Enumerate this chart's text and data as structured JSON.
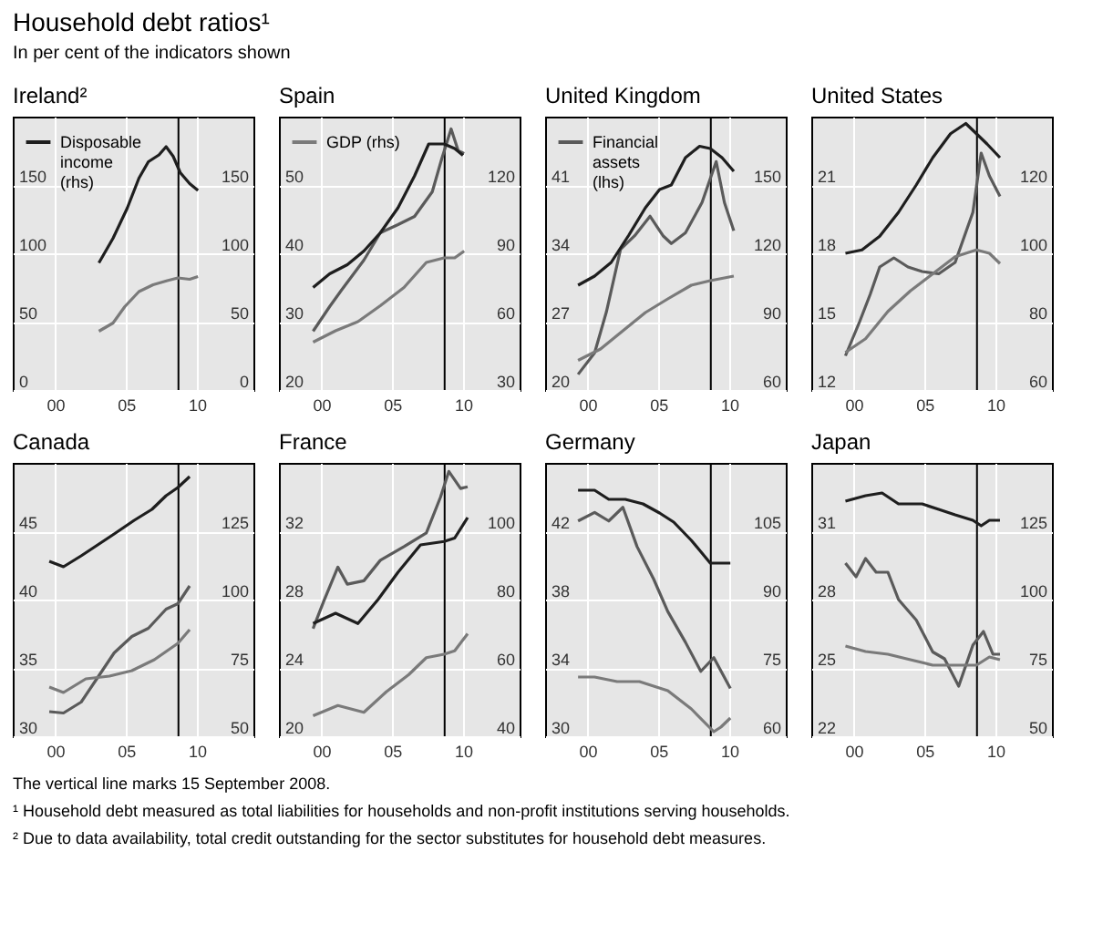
{
  "chart_data": [
    {
      "type": "other",
      "title": "Household debt ratios¹",
      "subtitle": "In per cent of the indicators shown"
    },
    {
      "type": "line",
      "title": "Ireland²",
      "xlim": [
        "1997-01",
        "2014-01"
      ],
      "xticks": [
        {
          "value": "2000",
          "label": "00"
        },
        {
          "value": "2005",
          "label": "05"
        },
        {
          "value": "2010",
          "label": "10"
        }
      ],
      "ylim": [
        0,
        200
      ],
      "yticks": [
        0,
        50,
        100,
        150
      ],
      "y2lim": [
        0,
        200
      ],
      "y2ticks": [
        0,
        50,
        100,
        150
      ],
      "grid": true,
      "legend": "top left",
      "ref_lines": [
        {
          "axis": "x",
          "value": "2008-09-15",
          "color": "#000000"
        }
      ],
      "series": [
        {
          "name": "Disposable income (rhs)",
          "color": "#1e1e1e",
          "axis": "y2",
          "x": [
            "2003-02",
            "2004-02",
            "2005-02",
            "2005-12",
            "2006-08",
            "2007-05",
            "2007-11",
            "2008-05",
            "2008-11",
            "2009-07",
            "2010-02"
          ],
          "values": [
            93,
            111,
            133,
            155,
            167,
            172,
            178,
            171,
            159,
            151,
            146
          ]
        },
        {
          "color": "#7a7a7a",
          "axis": "y2",
          "x": [
            "2003-02",
            "2004-02",
            "2004-12",
            "2005-12",
            "2006-12",
            "2007-12",
            "2008-09",
            "2009-07",
            "2010-02"
          ],
          "values": [
            43,
            49,
            61,
            72,
            77,
            80,
            82,
            81,
            83
          ]
        }
      ]
    },
    {
      "type": "line",
      "title": "Spain",
      "xlim": [
        "1997-01",
        "2014-01"
      ],
      "xticks": [
        {
          "value": "2000",
          "label": "00"
        },
        {
          "value": "2005",
          "label": "05"
        },
        {
          "value": "2010",
          "label": "10"
        }
      ],
      "ylim": [
        20,
        60
      ],
      "yticks": [
        20,
        30,
        40,
        50
      ],
      "y2lim": [
        30,
        150
      ],
      "y2ticks": [
        30,
        60,
        90,
        120
      ],
      "grid": true,
      "legend": "top left",
      "ref_lines": [
        {
          "axis": "x",
          "value": "2008-09-15",
          "color": "#000000"
        }
      ],
      "series": [
        {
          "color": "#1e1e1e",
          "axis": "y2",
          "x": [
            "1999-06",
            "2000-08",
            "2001-11",
            "2003-01",
            "2004-03",
            "2005-06",
            "2006-08",
            "2007-08",
            "2008-09",
            "2009-06",
            "2010-01"
          ],
          "values": [
            75,
            81,
            85,
            91,
            99,
            110,
            124,
            138,
            138,
            136,
            133
          ]
        },
        {
          "color": "#5a5a5a",
          "x": [
            "1999-06",
            "2000-08",
            "2001-06",
            "2003-01",
            "2004-03",
            "2005-06",
            "2006-08",
            "2007-11",
            "2008-07",
            "2009-03",
            "2009-09",
            "2010-02"
          ],
          "values": [
            28.6,
            32.2,
            34.6,
            39.0,
            43.0,
            44.2,
            45.4,
            49.0,
            53.8,
            58.2,
            55.0,
            54.6
          ]
        },
        {
          "name": "GDP (rhs)",
          "color": "#7a7a7a",
          "axis": "y2",
          "x": [
            "1999-06",
            "2001-01",
            "2002-08",
            "2004-03",
            "2005-11",
            "2007-06",
            "2008-09",
            "2009-06",
            "2010-02"
          ],
          "values": [
            51,
            56,
            60,
            67,
            75,
            86,
            88,
            88,
            91
          ]
        }
      ]
    },
    {
      "type": "line",
      "title": "United Kingdom",
      "xlim": [
        "1997-01",
        "2014-01"
      ],
      "xticks": [
        {
          "value": "2000",
          "label": "00"
        },
        {
          "value": "2005",
          "label": "05"
        },
        {
          "value": "2010",
          "label": "10"
        }
      ],
      "ylim": [
        20,
        48
      ],
      "yticks": [
        20,
        27,
        34,
        41
      ],
      "y2lim": [
        60,
        180
      ],
      "y2ticks": [
        60,
        90,
        120,
        150
      ],
      "grid": true,
      "legend": "top left",
      "ref_lines": [
        {
          "axis": "x",
          "value": "2008-09-15",
          "color": "#000000"
        }
      ],
      "series": [
        {
          "color": "#1e1e1e",
          "axis": "y2",
          "x": [
            "1999-05",
            "2000-07",
            "2001-09",
            "2002-12",
            "2004-02",
            "2005-02",
            "2005-12",
            "2006-12",
            "2007-12",
            "2008-09",
            "2009-07",
            "2010-05"
          ],
          "values": [
            106,
            110,
            116,
            128,
            140,
            148,
            150,
            162,
            167,
            166,
            162,
            156
          ]
        },
        {
          "name": "Financial assets (lhs)",
          "color": "#5a5a5a",
          "x": [
            "1999-05",
            "2000-07",
            "2001-05",
            "2002-05",
            "2003-05",
            "2004-06",
            "2005-05",
            "2005-12",
            "2006-12",
            "2008-02",
            "2009-02",
            "2009-09",
            "2010-05"
          ],
          "values": [
            21.6,
            23.8,
            28.0,
            34.4,
            35.8,
            37.8,
            35.8,
            35.0,
            36.1,
            39.2,
            43.4,
            39.2,
            36.3
          ]
        },
        {
          "color": "#7a7a7a",
          "axis": "y2",
          "x": [
            "1999-05",
            "2000-12",
            "2002-07",
            "2004-02",
            "2005-09",
            "2007-05",
            "2008-09",
            "2010-05"
          ],
          "values": [
            73,
            78,
            86,
            94,
            100,
            106,
            108,
            110
          ]
        }
      ]
    },
    {
      "type": "line",
      "title": "United States",
      "xlim": [
        "1997-01",
        "2014-01"
      ],
      "xticks": [
        {
          "value": "2000",
          "label": "00"
        },
        {
          "value": "2005",
          "label": "05"
        },
        {
          "value": "2010",
          "label": "10"
        }
      ],
      "ylim": [
        12,
        24
      ],
      "yticks": [
        12,
        15,
        18,
        21
      ],
      "y2lim": [
        60,
        140
      ],
      "y2ticks": [
        60,
        80,
        100,
        120
      ],
      "grid": true,
      "ref_lines": [
        {
          "axis": "x",
          "value": "2008-09-15",
          "color": "#000000"
        }
      ],
      "series": [
        {
          "color": "#1e1e1e",
          "axis": "y2",
          "x": [
            "1999-06",
            "2000-08",
            "2001-11",
            "2003-03",
            "2004-06",
            "2005-08",
            "2006-11",
            "2007-12",
            "2008-09",
            "2009-06",
            "2010-05"
          ],
          "values": [
            100,
            101,
            105,
            112,
            120,
            128,
            135,
            138,
            135,
            132,
            128
          ]
        },
        {
          "color": "#5a5a5a",
          "x": [
            "1999-06",
            "2000-06",
            "2001-03",
            "2001-11",
            "2002-11",
            "2003-11",
            "2004-11",
            "2006-01",
            "2007-03",
            "2008-06",
            "2009-01",
            "2009-08",
            "2010-05"
          ],
          "values": [
            13.5,
            15.0,
            16.2,
            17.4,
            17.8,
            17.4,
            17.2,
            17.1,
            17.6,
            19.8,
            22.4,
            21.4,
            20.5
          ]
        },
        {
          "color": "#7a7a7a",
          "axis": "y2",
          "x": [
            "1999-06",
            "2000-11",
            "2002-06",
            "2004-01",
            "2005-08",
            "2007-03",
            "2008-09",
            "2009-08",
            "2010-05"
          ],
          "values": [
            71,
            75,
            83,
            89,
            94,
            99,
            101,
            100,
            97
          ]
        }
      ]
    },
    {
      "type": "line",
      "title": "Canada",
      "xlim": [
        "1997-01",
        "2014-01"
      ],
      "xticks": [
        {
          "value": "2000",
          "label": "00"
        },
        {
          "value": "2005",
          "label": "05"
        },
        {
          "value": "2010",
          "label": "10"
        }
      ],
      "ylim": [
        30,
        50
      ],
      "yticks": [
        30,
        35,
        40,
        45
      ],
      "y2lim": [
        50,
        150
      ],
      "y2ticks": [
        50,
        75,
        100,
        125
      ],
      "grid": true,
      "ref_lines": [
        {
          "axis": "x",
          "value": "2008-09-15",
          "color": "#000000"
        }
      ],
      "series": [
        {
          "color": "#1e1e1e",
          "axis": "y2",
          "x": [
            "1999-08",
            "2000-08",
            "2001-11",
            "2003-01",
            "2004-03",
            "2005-08",
            "2006-11",
            "2007-11",
            "2008-09",
            "2009-07"
          ],
          "values": [
            114,
            112,
            116,
            120,
            124,
            129,
            133,
            138,
            141,
            145
          ]
        },
        {
          "color": "#5a5a5a",
          "x": [
            "1999-08",
            "2000-08",
            "2001-11",
            "2003-01",
            "2004-03",
            "2005-06",
            "2006-08",
            "2007-11",
            "2008-09",
            "2009-07"
          ],
          "values": [
            31.8,
            31.7,
            32.5,
            34.3,
            36.1,
            37.3,
            37.9,
            39.3,
            39.7,
            41.0
          ]
        },
        {
          "color": "#7a7a7a",
          "axis": "y2",
          "x": [
            "1999-08",
            "2000-08",
            "2002-03",
            "2003-11",
            "2005-06",
            "2007-01",
            "2008-09",
            "2009-07"
          ],
          "values": [
            68,
            66,
            71,
            72,
            74,
            78,
            84,
            89
          ]
        }
      ]
    },
    {
      "type": "line",
      "title": "France",
      "xlim": [
        "1997-01",
        "2014-01"
      ],
      "xticks": [
        {
          "value": "2000",
          "label": "00"
        },
        {
          "value": "2005",
          "label": "05"
        },
        {
          "value": "2010",
          "label": "10"
        }
      ],
      "ylim": [
        20,
        36
      ],
      "yticks": [
        20,
        24,
        28,
        32
      ],
      "y2lim": [
        40,
        120
      ],
      "y2ticks": [
        40,
        60,
        80,
        100
      ],
      "grid": true,
      "ref_lines": [
        {
          "axis": "x",
          "value": "2008-09-15",
          "color": "#000000"
        }
      ],
      "series": [
        {
          "color": "#1e1e1e",
          "axis": "y2",
          "x": [
            "1999-06",
            "2001-01",
            "2002-08",
            "2004-01",
            "2005-06",
            "2007-01",
            "2008-09",
            "2009-06",
            "2010-05"
          ],
          "values": [
            73,
            76,
            73,
            80,
            88,
            96,
            97,
            98,
            104
          ]
        },
        {
          "color": "#5a5a5a",
          "x": [
            "1999-06",
            "2000-03",
            "2001-03",
            "2001-11",
            "2003-01",
            "2004-03",
            "2005-11",
            "2007-06",
            "2008-06",
            "2009-01",
            "2009-11",
            "2010-05"
          ],
          "values": [
            26.3,
            27.9,
            29.9,
            28.9,
            29.1,
            30.3,
            31.1,
            31.9,
            34.0,
            35.5,
            34.5,
            34.6
          ]
        },
        {
          "color": "#7a7a7a",
          "axis": "y2",
          "x": [
            "1999-06",
            "2001-03",
            "2003-01",
            "2004-08",
            "2006-03",
            "2007-06",
            "2008-09",
            "2009-06",
            "2010-05"
          ],
          "values": [
            46,
            49,
            47,
            53,
            58,
            63,
            64,
            65,
            70
          ]
        }
      ]
    },
    {
      "type": "line",
      "title": "Germany",
      "xlim": [
        "1997-01",
        "2014-01"
      ],
      "xticks": [
        {
          "value": "2000",
          "label": "00"
        },
        {
          "value": "2005",
          "label": "05"
        },
        {
          "value": "2010",
          "label": "10"
        }
      ],
      "ylim": [
        30,
        46
      ],
      "yticks": [
        30,
        34,
        38,
        42
      ],
      "y2lim": [
        60,
        120
      ],
      "y2ticks": [
        60,
        75,
        90,
        105
      ],
      "grid": true,
      "ref_lines": [
        {
          "axis": "x",
          "value": "2008-09-15",
          "color": "#000000"
        }
      ],
      "series": [
        {
          "color": "#1e1e1e",
          "axis": "y2",
          "x": [
            "1999-05",
            "2000-07",
            "2001-07",
            "2002-09",
            "2003-12",
            "2005-02",
            "2006-02",
            "2007-05",
            "2008-09",
            "2010-02"
          ],
          "values": [
            114,
            114,
            112,
            112,
            111,
            109,
            107,
            103,
            98,
            98
          ]
        },
        {
          "color": "#5a5a5a",
          "x": [
            "1999-05",
            "2000-07",
            "2001-07",
            "2002-07",
            "2003-07",
            "2004-09",
            "2005-09",
            "2006-12",
            "2008-01",
            "2008-12",
            "2010-02"
          ],
          "values": [
            42.6,
            43.1,
            42.6,
            43.4,
            41.1,
            39.2,
            37.3,
            35.5,
            33.8,
            34.6,
            32.8
          ]
        },
        {
          "color": "#7a7a7a",
          "axis": "y2",
          "x": [
            "1999-05",
            "2000-07",
            "2002-02",
            "2003-09",
            "2005-09",
            "2007-05",
            "2008-12",
            "2009-06",
            "2010-02"
          ],
          "values": [
            73,
            73,
            72,
            72,
            70,
            66,
            61,
            62,
            64
          ]
        }
      ]
    },
    {
      "type": "line",
      "title": "Japan",
      "xlim": [
        "1997-01",
        "2014-01"
      ],
      "xticks": [
        {
          "value": "2000",
          "label": "00"
        },
        {
          "value": "2005",
          "label": "05"
        },
        {
          "value": "2010",
          "label": "10"
        }
      ],
      "ylim": [
        22,
        34
      ],
      "yticks": [
        22,
        25,
        28,
        31
      ],
      "y2lim": [
        50,
        150
      ],
      "y2ticks": [
        50,
        75,
        100,
        125
      ],
      "grid": true,
      "ref_lines": [
        {
          "axis": "x",
          "value": "2008-09-15",
          "color": "#000000"
        }
      ],
      "series": [
        {
          "color": "#1e1e1e",
          "axis": "y2",
          "x": [
            "1999-06",
            "2000-11",
            "2002-01",
            "2003-03",
            "2004-11",
            "2006-01",
            "2007-03",
            "2008-06",
            "2009-01",
            "2009-08",
            "2010-05"
          ],
          "values": [
            136,
            138,
            139,
            135,
            135,
            133,
            131,
            129,
            127,
            129,
            129
          ]
        },
        {
          "color": "#5a5a5a",
          "x": [
            "1999-06",
            "2000-03",
            "2000-11",
            "2001-08",
            "2002-06",
            "2003-03",
            "2004-06",
            "2005-08",
            "2006-06",
            "2007-06",
            "2008-06",
            "2009-03",
            "2009-11",
            "2010-05"
          ],
          "values": [
            29.6,
            29.0,
            29.8,
            29.2,
            29.2,
            28.0,
            27.1,
            25.7,
            25.4,
            24.2,
            26.0,
            26.6,
            25.6,
            25.6
          ]
        },
        {
          "color": "#7a7a7a",
          "axis": "y2",
          "x": [
            "1999-06",
            "2000-11",
            "2002-06",
            "2004-01",
            "2005-08",
            "2007-03",
            "2008-09",
            "2009-08",
            "2010-05"
          ],
          "values": [
            83,
            81,
            80,
            78,
            76,
            76,
            76,
            79,
            78
          ]
        }
      ]
    },
    {
      "type": "other",
      "annotations": [
        "The vertical line marks 15 September 2008.",
        "¹ Household debt measured as total liabilities for households and non-profit institutions serving households.",
        "² Due to data availability, total credit outstanding for the sector substitutes for household debt measures."
      ]
    }
  ]
}
